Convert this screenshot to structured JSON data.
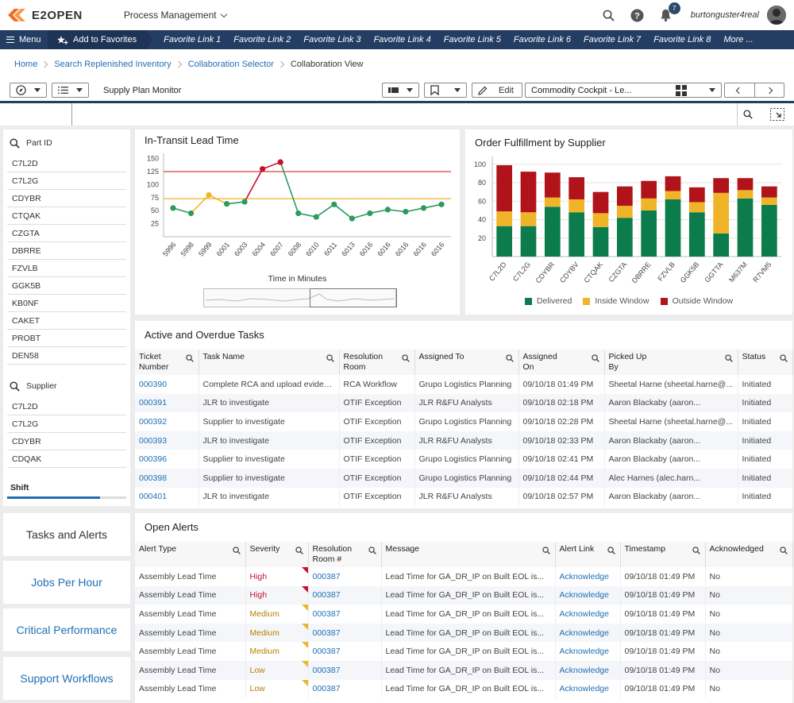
{
  "header": {
    "logo_text": "E2OPEN",
    "app_menu": "Process Management",
    "notification_count": "7",
    "username": "burtonguster4real"
  },
  "nav": {
    "menu_label": "Menu",
    "favorites_label": "Add to Favorites",
    "favorite_links": [
      "Favorite Link 1",
      "Favorite Link 2",
      "Favorite Link 3",
      "Favorite Link 4",
      "Favorite Link 5",
      "Favorite Link 6",
      "Favorite Link 7",
      "Favorite Link 8",
      "More ..."
    ]
  },
  "breadcrumb": [
    "Home",
    "Search Replenished Inventory",
    "Collaboration Selector",
    "Collaboration View"
  ],
  "toolbar": {
    "title": "Supply Plan Monitor",
    "edit_label": "Edit",
    "view_select": "Commodity Cockpit - Le..."
  },
  "filters": {
    "part_id_label": "Part ID",
    "part_ids": [
      "C7L2D",
      "C7L2G",
      "CDYBR",
      "CTQAK",
      "CZGTA",
      "DBRRE",
      "FZVLB",
      "GGK5B",
      "KB0NF",
      "CAKET",
      "PROBT",
      "DEN58"
    ],
    "supplier_label": "Supplier",
    "suppliers": [
      "C7L2D",
      "C7L2G",
      "CDYBR",
      "CDQAK"
    ],
    "shift_label": "Shift",
    "shift_progress": 0.78
  },
  "side_buttons": [
    "Tasks and Alerts",
    "Jobs Per Hour",
    "Critical Performance",
    "Support Workflows"
  ],
  "chart_data": [
    {
      "type": "line",
      "title": "In-Transit Lead Time",
      "xlabel": "Time in Minutes",
      "ylabel": "",
      "categories": [
        "5996",
        "5998",
        "5999",
        "6001",
        "6003",
        "6004",
        "6007",
        "6008",
        "6010",
        "6011",
        "6013",
        "6016",
        "6016",
        "6016",
        "6016",
        "6016"
      ],
      "values": [
        55,
        45,
        80,
        63,
        67,
        130,
        143,
        45,
        38,
        62,
        35,
        45,
        52,
        48,
        55,
        62
      ],
      "point_colors": [
        "green",
        "green",
        "yellow",
        "green",
        "green",
        "red",
        "red",
        "green",
        "green",
        "green",
        "green",
        "green",
        "green",
        "green",
        "green",
        "green"
      ],
      "yticks": [
        25,
        50,
        75,
        100,
        125,
        150
      ],
      "ylim": [
        0,
        160
      ],
      "thresholds": [
        {
          "value": 125,
          "color": "#d9413b"
        },
        {
          "value": 73,
          "color": "#f0b429"
        }
      ],
      "grid": false,
      "colors": {
        "green": "#2e9b5b",
        "yellow": "#f0b429",
        "red": "#c8102e"
      }
    },
    {
      "type": "bar",
      "stacked": true,
      "title": "Order Fulfillment by Supplier",
      "xlabel": "",
      "ylabel": "",
      "categories": [
        "C7L2D",
        "C7L2G",
        "CDYBR",
        "CDYBV",
        "CTQAK",
        "CZGTA",
        "DBRRE",
        "FZVLB",
        "GGK5B",
        "GGTTA",
        "M637M",
        "R7VM5"
      ],
      "series": [
        {
          "name": "Delivered",
          "color": "#0c7c4c",
          "values": [
            33,
            33,
            54,
            48,
            32,
            42,
            50,
            62,
            48,
            25,
            63,
            56
          ]
        },
        {
          "name": "Inside Window",
          "color": "#f0b429",
          "values": [
            16,
            15,
            10,
            14,
            15,
            13,
            13,
            9,
            11,
            44,
            9,
            8
          ]
        },
        {
          "name": "Outside Window",
          "color": "#b0141a",
          "values": [
            50,
            44,
            27,
            24,
            23,
            21,
            19,
            16,
            16,
            16,
            13,
            12
          ]
        }
      ],
      "yticks": [
        20,
        40,
        60,
        80,
        100
      ],
      "ylim": [
        0,
        105
      ],
      "grid": true,
      "legend": "bottom"
    }
  ],
  "tasks": {
    "title": "Active and Overdue Tasks",
    "columns": [
      "Ticket Number",
      "Task Name",
      "Resolution Room",
      "Assigned To",
      "Assigned On",
      "Picked Up By",
      "Status"
    ],
    "rows": [
      [
        "000390",
        "Complete RCA and upload evidenc...",
        "RCA Workflow",
        "Grupo Logistics Planning",
        "09/10/18 01:49 PM",
        "Sheetal Harne (sheetal.harne@...",
        "Initiated"
      ],
      [
        "000391",
        "JLR to investigate",
        "OTIF Exception",
        "JLR R&FU Analysts",
        "09/10/18 02:18 PM",
        "Aaron Blackaby (aaron...",
        "Initiated"
      ],
      [
        "000392",
        "Supplier to investigate",
        "OTIF Exception",
        "Grupo Logistics Planning",
        "09/10/18 02:28 PM",
        "Sheetal Harne (sheetal.harne@...",
        "Initiated"
      ],
      [
        "000393",
        "JLR to investigate",
        "OTIF Exception",
        "JLR R&FU Analysts",
        "09/10/18 02:33 PM",
        "Aaron Blackaby (aaron...",
        "Initiated"
      ],
      [
        "000396",
        "Supplier to investigate",
        "OTIF Exception",
        "Grupo Logistics Planning",
        "09/10/18 02:41 PM",
        "Aaron Blackaby (aaron...",
        "Initiated"
      ],
      [
        "000398",
        "Supplier to investigate",
        "OTIF Exception",
        "Grupo Logistics Planning",
        "09/10/18 02:44 PM",
        "Alec Harnes (alec.harn...",
        "Initiated"
      ],
      [
        "000401",
        "JLR to investigate",
        "OTIF Exception",
        "JLR R&FU Analysts",
        "09/10/18 02:57 PM",
        "Aaron Blackaby (aaron...",
        "Initiated"
      ]
    ]
  },
  "alerts": {
    "title": "Open Alerts",
    "columns": [
      "Alert Type",
      "Severity",
      "Resolution Room #",
      "Message",
      "Alert Link",
      "Timestamp",
      "Acknowledged"
    ],
    "rows": [
      [
        "Assembly Lead Time",
        "High",
        "000387",
        "Lead Time for GA_DR_IP on Built EOL is...",
        "Acknowledge",
        "09/10/18 01:49 PM",
        "No"
      ],
      [
        "Assembly Lead Time",
        "High",
        "000387",
        "Lead Time for GA_DR_IP on Built EOL is...",
        "Acknowledge",
        "09/10/18 01:49 PM",
        "No"
      ],
      [
        "Assembly Lead Time",
        "Medium",
        "000387",
        "Lead Time for GA_DR_IP on Built EOL is...",
        "Acknowledge",
        "09/10/18 01:49 PM",
        "No"
      ],
      [
        "Assembly Lead Time",
        "Medium",
        "000387",
        "Lead Time for GA_DR_IP on Built EOL is...",
        "Acknowledge",
        "09/10/18 01:49 PM",
        "No"
      ],
      [
        "Assembly Lead Time",
        "Medium",
        "000387",
        "Lead Time for GA_DR_IP on Built EOL is...",
        "Acknowledge",
        "09/10/18 01:49 PM",
        "No"
      ],
      [
        "Assembly Lead Time",
        "Low",
        "000387",
        "Lead Time for GA_DR_IP on Built EOL is...",
        "Acknowledge",
        "09/10/18 01:49 PM",
        "No"
      ],
      [
        "Assembly Lead Time",
        "Low",
        "000387",
        "Lead Time for GA_DR_IP on Built EOL is...",
        "Acknowledge",
        "09/10/18 01:49 PM",
        "No"
      ]
    ],
    "severity_colors": {
      "High": "#c8102e",
      "Medium": "#b58100",
      "Low": "#b58100"
    },
    "flag_colors": {
      "High": "#c8102e",
      "Medium": "#f0b429",
      "Low": "#f0b429"
    }
  }
}
